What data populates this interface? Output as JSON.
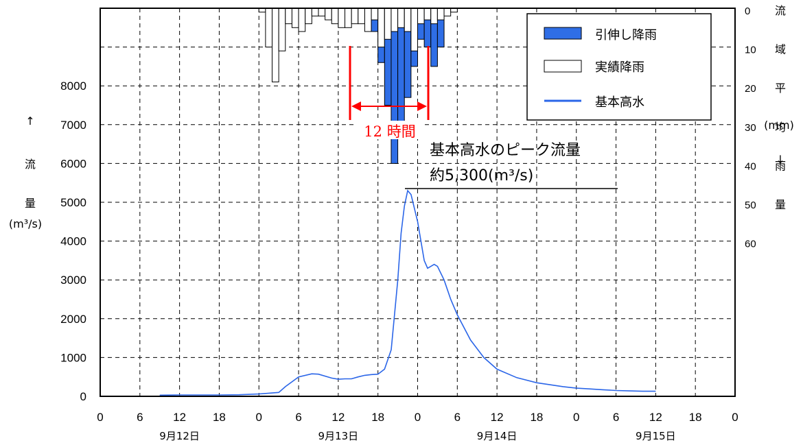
{
  "chart_data": {
    "type": "line",
    "x_ticks": [
      "0",
      "6",
      "12",
      "18",
      "0",
      "6",
      "12",
      "18",
      "0",
      "6",
      "12",
      "18",
      "0",
      "6",
      "12",
      "18",
      "0"
    ],
    "date_labels": [
      "9月12日",
      "9月13日",
      "9月14日",
      "9月15日"
    ],
    "y_ticks": [
      0,
      1000,
      2000,
      3000,
      4000,
      5000,
      6000,
      7000,
      8000
    ],
    "ylim": [
      0,
      10000
    ],
    "y_label": {
      "arrow": "↑",
      "chars": [
        "流",
        "量"
      ],
      "unit": "(m³/s)"
    },
    "rain_axis": {
      "ticks": [
        "0",
        "10",
        "20",
        "30",
        "40",
        "50",
        "60"
      ],
      "unit": "(mm)",
      "label_chars": [
        "流",
        "域",
        "平",
        "均",
        "雨",
        "量"
      ],
      "arrow": "↓",
      "range": [
        0,
        60
      ]
    },
    "legend": {
      "extended": "引伸し降雨",
      "actual": "実績降雨",
      "flow": "基本高水"
    },
    "colors": {
      "flow": "#2a65e8",
      "extended": "#2f6ee6",
      "axis": "#000000",
      "grid": "#000000",
      "duration": "#ff0000"
    },
    "series": [
      {
        "name": "基本高水",
        "unit": "m³/s",
        "x_hours_from_sep12_0h": [
          9,
          12,
          15,
          18,
          21,
          24,
          27,
          28,
          30,
          32,
          33,
          35,
          36,
          37,
          38,
          39,
          40,
          41,
          42,
          43,
          44,
          45,
          45.5,
          46,
          46.5,
          47,
          48,
          48.5,
          49,
          49.5,
          50,
          50.5,
          51,
          52,
          53,
          54,
          56,
          58,
          60,
          63,
          66,
          70,
          72,
          74,
          76,
          78,
          80,
          82,
          84
        ],
        "values": [
          30,
          35,
          35,
          35,
          40,
          60,
          100,
          250,
          500,
          580,
          570,
          470,
          440,
          450,
          450,
          500,
          540,
          560,
          570,
          700,
          1200,
          3000,
          4200,
          4900,
          5300,
          5200,
          4500,
          4000,
          3500,
          3300,
          3350,
          3400,
          3350,
          3000,
          2500,
          2100,
          1450,
          1000,
          700,
          480,
          350,
          250,
          210,
          190,
          170,
          150,
          140,
          130,
          130
        ]
      }
    ],
    "rainfall": {
      "unit": "mm",
      "x_hours_from_sep12_0h": [
        24,
        25,
        26,
        27,
        28,
        29,
        30,
        31,
        32,
        33,
        34,
        35,
        36,
        37,
        38,
        39,
        40,
        41,
        42,
        43,
        44,
        45,
        46,
        47,
        48,
        49,
        50,
        51,
        52,
        53
      ],
      "actual": [
        1,
        10,
        19,
        11,
        4,
        5,
        6,
        4,
        2,
        2,
        3,
        4,
        5,
        5,
        4,
        4,
        6,
        3,
        10,
        8,
        6,
        5,
        6,
        11,
        4,
        3,
        4,
        3,
        2,
        1
      ],
      "extended": [
        0,
        0,
        0,
        0,
        0,
        0,
        0,
        0,
        0,
        0,
        0,
        0,
        0,
        0,
        0,
        0,
        0,
        6,
        14,
        25,
        40,
        33,
        23,
        15,
        8,
        10,
        15,
        10,
        0,
        0
      ]
    },
    "annotations": {
      "peak_title": "基本高水のピーク流量",
      "peak_value": "約5,300(m³/s)",
      "duration": "12 時間"
    }
  }
}
